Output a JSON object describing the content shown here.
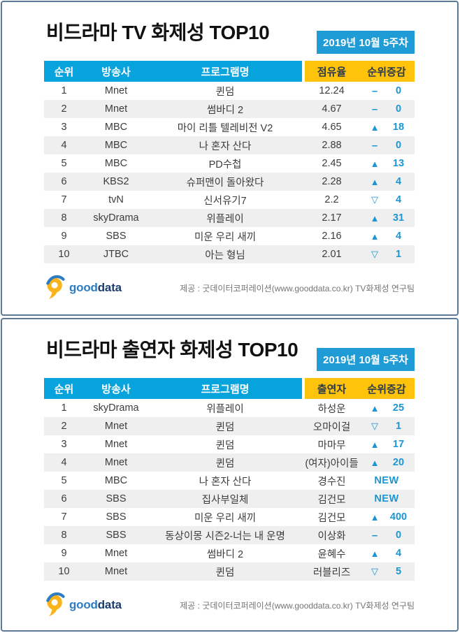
{
  "colors": {
    "header_blue": "#06a3dd",
    "badge_blue": "#1f9bd6",
    "yellow": "#ffc30b",
    "yellow_text": "#2b3a4a",
    "change_blue": "#1a96d4",
    "row_alt": "#efefef",
    "panel_border": "#5c7a96",
    "body_text": "#3c3c3c",
    "credit_gray": "#757575",
    "logo_good": "#2f7cc0",
    "logo_data": "#1d3e6e",
    "logo_yellow": "#f9b41c"
  },
  "icons": {
    "up": "▲",
    "down": "▽",
    "same": "–",
    "new_label": "NEW"
  },
  "footer": {
    "logo": {
      "good": "good",
      "data": "data"
    },
    "credit": "제공 : 굿데이터코퍼레이션(www.gooddata.co.kr) TV화제성 연구팀"
  },
  "chart_data": [
    {
      "type": "table",
      "title": "비드라마 TV 화제성 TOP10",
      "subtitle": "2019년 10월 5주차",
      "columns": [
        "순위",
        "방송사",
        "프로그램명",
        "점유율",
        "순위증감"
      ],
      "rows": [
        {
          "rank": "1",
          "broadcaster": "Mnet",
          "program": "퀸덤",
          "metric": "12.24",
          "change_dir": "same",
          "change_value": "0"
        },
        {
          "rank": "2",
          "broadcaster": "Mnet",
          "program": "썸바디 2",
          "metric": "4.67",
          "change_dir": "same",
          "change_value": "0"
        },
        {
          "rank": "3",
          "broadcaster": "MBC",
          "program": "마이 리틀 텔레비전 V2",
          "metric": "4.65",
          "change_dir": "up",
          "change_value": "18"
        },
        {
          "rank": "4",
          "broadcaster": "MBC",
          "program": "나 혼자 산다",
          "metric": "2.88",
          "change_dir": "same",
          "change_value": "0"
        },
        {
          "rank": "5",
          "broadcaster": "MBC",
          "program": "PD수첩",
          "metric": "2.45",
          "change_dir": "up",
          "change_value": "13"
        },
        {
          "rank": "6",
          "broadcaster": "KBS2",
          "program": "슈퍼맨이 돌아왔다",
          "metric": "2.28",
          "change_dir": "up",
          "change_value": "4"
        },
        {
          "rank": "7",
          "broadcaster": "tvN",
          "program": "신서유기7",
          "metric": "2.2",
          "change_dir": "down",
          "change_value": "4"
        },
        {
          "rank": "8",
          "broadcaster": "skyDrama",
          "program": "위플레이",
          "metric": "2.17",
          "change_dir": "up",
          "change_value": "31"
        },
        {
          "rank": "9",
          "broadcaster": "SBS",
          "program": "미운 우리 새끼",
          "metric": "2.16",
          "change_dir": "up",
          "change_value": "4"
        },
        {
          "rank": "10",
          "broadcaster": "JTBC",
          "program": "아는 형님",
          "metric": "2.01",
          "change_dir": "down",
          "change_value": "1"
        }
      ]
    },
    {
      "type": "table",
      "title": "비드라마 출연자 화제성 TOP10",
      "subtitle": "2019년 10월 5주차",
      "columns": [
        "순위",
        "방송사",
        "프로그램명",
        "출연자",
        "순위증감"
      ],
      "rows": [
        {
          "rank": "1",
          "broadcaster": "skyDrama",
          "program": "위플레이",
          "metric": "하성운",
          "change_dir": "up",
          "change_value": "25"
        },
        {
          "rank": "2",
          "broadcaster": "Mnet",
          "program": "퀸덤",
          "metric": "오마이걸",
          "change_dir": "down",
          "change_value": "1"
        },
        {
          "rank": "3",
          "broadcaster": "Mnet",
          "program": "퀸덤",
          "metric": "마마무",
          "change_dir": "up",
          "change_value": "17"
        },
        {
          "rank": "4",
          "broadcaster": "Mnet",
          "program": "퀸덤",
          "metric": "(여자)아이들",
          "change_dir": "up",
          "change_value": "20"
        },
        {
          "rank": "5",
          "broadcaster": "MBC",
          "program": "나 혼자 산다",
          "metric": "경수진",
          "change_dir": "new",
          "change_value": "NEW"
        },
        {
          "rank": "6",
          "broadcaster": "SBS",
          "program": "집사부일체",
          "metric": "김건모",
          "change_dir": "new",
          "change_value": "NEW"
        },
        {
          "rank": "7",
          "broadcaster": "SBS",
          "program": "미운 우리 새끼",
          "metric": "김건모",
          "change_dir": "up",
          "change_value": "400"
        },
        {
          "rank": "8",
          "broadcaster": "SBS",
          "program": "동상이몽 시즌2-너는 내 운명",
          "metric": "이상화",
          "change_dir": "same",
          "change_value": "0"
        },
        {
          "rank": "9",
          "broadcaster": "Mnet",
          "program": "썸바디 2",
          "metric": "윤혜수",
          "change_dir": "up",
          "change_value": "4"
        },
        {
          "rank": "10",
          "broadcaster": "Mnet",
          "program": "퀸덤",
          "metric": "러블리즈",
          "change_dir": "down",
          "change_value": "5"
        }
      ]
    }
  ]
}
